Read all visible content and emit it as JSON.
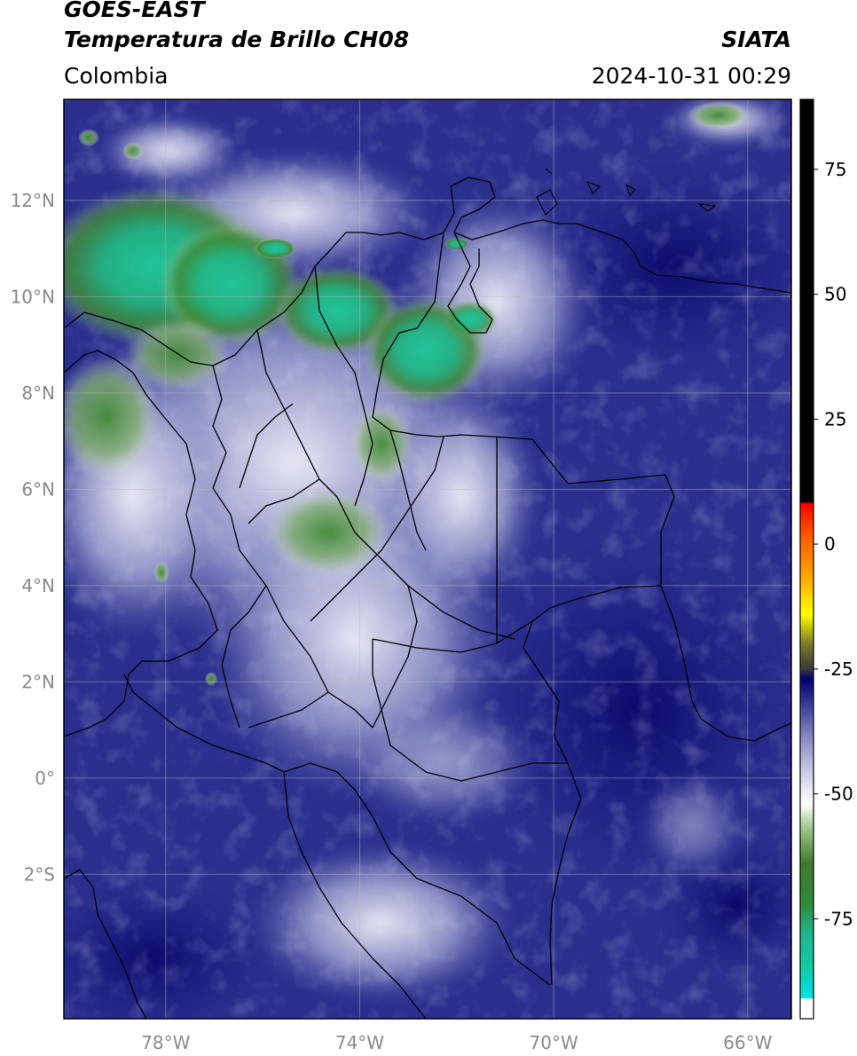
{
  "header": {
    "satellite": "GOES-EAST",
    "product": "Temperatura de Brillo CH08",
    "organization": "SIATA",
    "region": "Colombia",
    "timestamp": "2024-10-31 00:29"
  },
  "map": {
    "lat_labels": [
      {
        "value": 12,
        "text": "12°N"
      },
      {
        "value": 10,
        "text": "10°N"
      },
      {
        "value": 8,
        "text": "8°N"
      },
      {
        "value": 6,
        "text": "6°N"
      },
      {
        "value": 4,
        "text": "4°N"
      },
      {
        "value": 2,
        "text": "2°N"
      },
      {
        "value": 0,
        "text": "0°"
      },
      {
        "value": -2,
        "text": "2°S"
      }
    ],
    "lon_labels": [
      {
        "value": -78,
        "text": "78°W"
      },
      {
        "value": -74,
        "text": "74°W"
      },
      {
        "value": -70,
        "text": "70°W"
      },
      {
        "value": -66,
        "text": "66°W"
      }
    ],
    "lon_range": [
      -80.1,
      -65.1
    ],
    "lat_range": [
      -5.0,
      14.1
    ],
    "gridlines": true
  },
  "colorbar": {
    "range": [
      -95,
      89
    ],
    "tick_labels": [
      {
        "value": 75,
        "text": "75"
      },
      {
        "value": 50,
        "text": "50"
      },
      {
        "value": 25,
        "text": "25"
      },
      {
        "value": 0,
        "text": "0"
      },
      {
        "value": -25,
        "text": "-25"
      },
      {
        "value": -50,
        "text": "-50"
      },
      {
        "value": -75,
        "text": "-75"
      }
    ],
    "stops": [
      {
        "value": -95,
        "color": "#ffffff"
      },
      {
        "value": -91,
        "color": "#ffffff"
      },
      {
        "value": -90.9,
        "color": "#00e6e6"
      },
      {
        "value": -85,
        "color": "#12c9a6"
      },
      {
        "value": -78,
        "color": "#1fb78e"
      },
      {
        "value": -72,
        "color": "#2f8a3c"
      },
      {
        "value": -64,
        "color": "#3f7a2a"
      },
      {
        "value": -57,
        "color": "#9cc48a"
      },
      {
        "value": -52,
        "color": "#ffffff"
      },
      {
        "value": -45,
        "color": "#c4c6e2"
      },
      {
        "value": -38,
        "color": "#7f82bf"
      },
      {
        "value": -31,
        "color": "#2b2f8a"
      },
      {
        "value": -27,
        "color": "#000070"
      },
      {
        "value": -25,
        "color": "#3a3a3a"
      },
      {
        "value": -20,
        "color": "#7a7a2a"
      },
      {
        "value": -14,
        "color": "#ffff00"
      },
      {
        "value": -7,
        "color": "#ffaa00"
      },
      {
        "value": 2,
        "color": "#ff5500"
      },
      {
        "value": 8,
        "color": "#ff0000"
      },
      {
        "value": 8.5,
        "color": "#000000"
      },
      {
        "value": 89,
        "color": "#000000"
      }
    ]
  }
}
